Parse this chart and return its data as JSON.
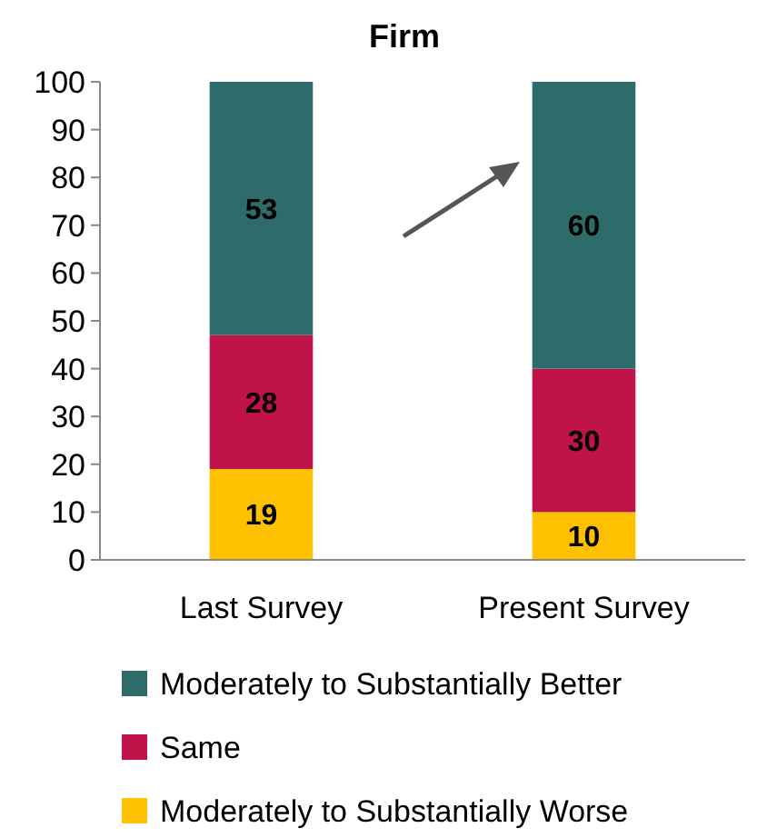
{
  "chart_data": {
    "type": "bar",
    "title": "Firm",
    "categories": [
      "Last Survey",
      "Present Survey"
    ],
    "series": [
      {
        "name": "Moderately to Substantially Worse",
        "color": "#ffc000",
        "values": [
          19,
          10
        ]
      },
      {
        "name": "Same",
        "color": "#c0134a",
        "values": [
          28,
          30
        ]
      },
      {
        "name": "Moderately to Substantially Better",
        "color": "#2e6b6b",
        "values": [
          53,
          60
        ]
      }
    ],
    "stacked": true,
    "ylim": [
      0,
      100
    ],
    "yticks": [
      0,
      10,
      20,
      30,
      40,
      50,
      60,
      70,
      80,
      90,
      100
    ],
    "grid": false,
    "legend": "bottom",
    "data_labels": true
  }
}
